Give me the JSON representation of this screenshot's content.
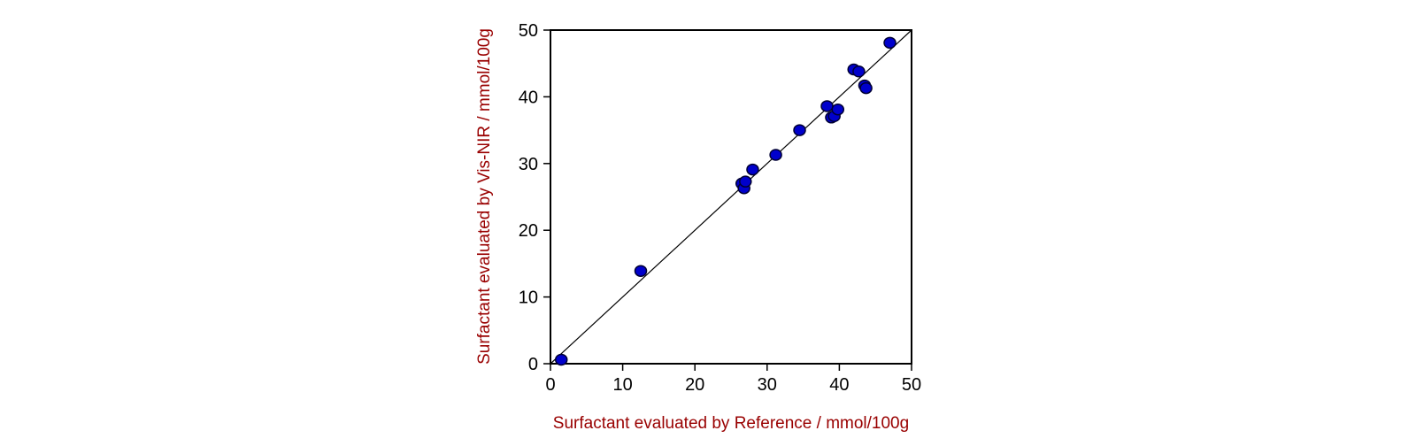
{
  "chart_data": {
    "type": "scatter",
    "title": "",
    "xlabel": "Surfactant evaluated by Reference / mmol/100g",
    "ylabel": "Surfactant evaluated by Vis-NIR / mmol/100g",
    "xlim": [
      0,
      50
    ],
    "ylim": [
      0,
      50
    ],
    "xticks": [
      0,
      10,
      20,
      30,
      40,
      50
    ],
    "yticks": [
      0,
      10,
      20,
      30,
      40,
      50
    ],
    "grid": false,
    "reference_line": [
      [
        0,
        0
      ],
      [
        50,
        50
      ]
    ],
    "series": [
      {
        "marker_color": "#0000cc",
        "points": [
          {
            "x": 1.5,
            "y": 0.6
          },
          {
            "x": 12.5,
            "y": 13.9
          },
          {
            "x": 26.5,
            "y": 27.0
          },
          {
            "x": 26.8,
            "y": 26.3
          },
          {
            "x": 27.0,
            "y": 27.3
          },
          {
            "x": 28.0,
            "y": 29.1
          },
          {
            "x": 31.2,
            "y": 31.3
          },
          {
            "x": 34.5,
            "y": 35.0
          },
          {
            "x": 38.3,
            "y": 38.6
          },
          {
            "x": 38.9,
            "y": 36.9
          },
          {
            "x": 39.3,
            "y": 37.1
          },
          {
            "x": 39.8,
            "y": 38.1
          },
          {
            "x": 42.0,
            "y": 44.1
          },
          {
            "x": 42.7,
            "y": 43.8
          },
          {
            "x": 43.5,
            "y": 41.7
          },
          {
            "x": 43.7,
            "y": 41.3
          },
          {
            "x": 47.0,
            "y": 48.1
          }
        ]
      }
    ]
  },
  "colors": {
    "axis_label": "#990000",
    "marker_fill": "#0000cc",
    "marker_stroke": "#000033"
  }
}
